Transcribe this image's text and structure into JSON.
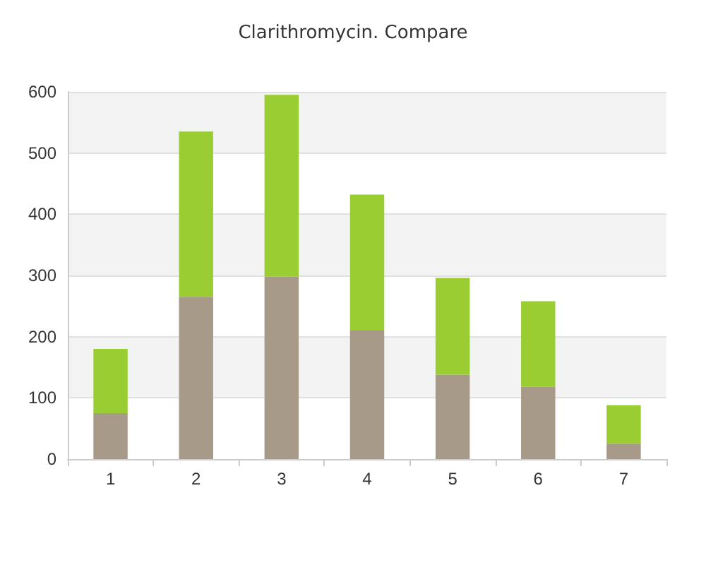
{
  "chart_data": {
    "type": "bar",
    "title": "Clarithromycin. Compare",
    "categories": [
      "1",
      "2",
      "3",
      "4",
      "5",
      "6",
      "7"
    ],
    "stacked": true,
    "series": [
      {
        "color": "#a89a88",
        "values": [
          75,
          265,
          298,
          210,
          138,
          118,
          25
        ]
      },
      {
        "color": "#9acd32",
        "values": [
          105,
          270,
          297,
          222,
          158,
          140,
          63
        ]
      }
    ],
    "ylim": [
      0,
      600
    ],
    "yticks": [
      0,
      100,
      200,
      300,
      400,
      500,
      600
    ],
    "grid": "y"
  }
}
